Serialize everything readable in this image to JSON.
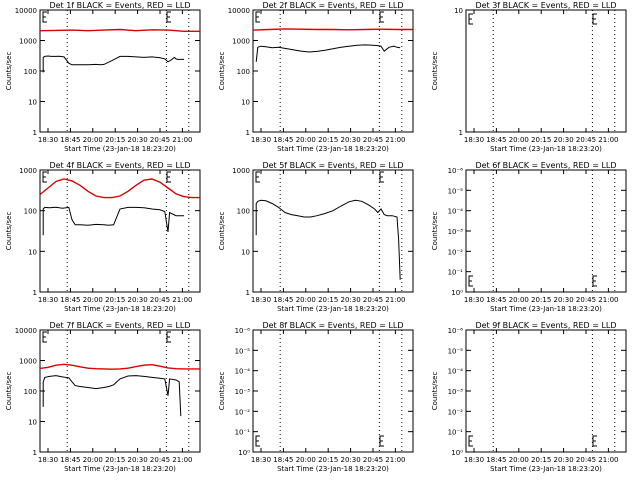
{
  "figure": {
    "xlabel": "Start Time (23-Jan-18 18:23:20)",
    "ylabel": "Counts/sec",
    "xticks": [
      "18:30",
      "18:45",
      "20:00",
      "20:15",
      "20:30",
      "20:45",
      "21:00"
    ]
  },
  "chart_data": [
    {
      "type": "line",
      "title": "Det 1f BLACK = Events, RED = LLD",
      "ylog": true,
      "ylim": [
        1,
        10000
      ],
      "yticks": [
        "1",
        "10",
        "100",
        "1000",
        "10000"
      ],
      "series": [
        {
          "color": "#000000",
          "x": [
            0.02,
            0.02,
            0.03,
            0.05,
            0.07,
            0.1,
            0.12,
            0.15,
            0.18,
            0.2,
            0.25,
            0.3,
            0.35,
            0.38,
            0.4,
            0.45,
            0.5,
            0.55,
            0.6,
            0.65,
            0.7,
            0.75,
            0.78,
            0.8,
            0.82,
            0.84,
            0.85,
            0.86,
            0.9
          ],
          "y": [
            90,
            280,
            300,
            310,
            300,
            300,
            305,
            290,
            180,
            160,
            160,
            160,
            165,
            160,
            165,
            220,
            300,
            300,
            290,
            280,
            290,
            270,
            250,
            200,
            230,
            280,
            250,
            240,
            240
          ]
        },
        {
          "color": "#dd0000",
          "x": [
            0,
            0.1,
            0.2,
            0.3,
            0.4,
            0.5,
            0.6,
            0.7,
            0.8,
            0.9,
            1.0
          ],
          "y": [
            2100,
            2150,
            2200,
            2100,
            2200,
            2300,
            2100,
            2250,
            2200,
            2000,
            2000
          ]
        }
      ]
    },
    {
      "type": "line",
      "title": "Det 2f BLACK = Events, RED = LLD",
      "ylog": true,
      "ylim": [
        1,
        10000
      ],
      "yticks": [
        "1",
        "10",
        "100",
        "1000",
        "10000"
      ],
      "series": [
        {
          "color": "#000000",
          "x": [
            0.02,
            0.03,
            0.05,
            0.08,
            0.12,
            0.16,
            0.2,
            0.25,
            0.3,
            0.35,
            0.4,
            0.45,
            0.5,
            0.55,
            0.6,
            0.65,
            0.7,
            0.75,
            0.78,
            0.8,
            0.82,
            0.85,
            0.88,
            0.9,
            0.92
          ],
          "y": [
            200,
            600,
            650,
            620,
            580,
            600,
            550,
            500,
            450,
            420,
            440,
            480,
            540,
            600,
            650,
            700,
            720,
            700,
            680,
            650,
            450,
            600,
            650,
            600,
            580
          ]
        },
        {
          "color": "#dd0000",
          "x": [
            0,
            0.1,
            0.2,
            0.3,
            0.4,
            0.5,
            0.6,
            0.7,
            0.8,
            0.9,
            1.0
          ],
          "y": [
            2200,
            2300,
            2400,
            2350,
            2300,
            2300,
            2250,
            2300,
            2350,
            2300,
            2300
          ]
        }
      ]
    },
    {
      "type": "line",
      "title": "Det 3f BLACK = Events, RED = LLD",
      "ylog": true,
      "ylim": [
        1,
        10
      ],
      "yticks": [
        "1",
        "10"
      ],
      "series": []
    },
    {
      "type": "line",
      "title": "Det 4f BLACK = Events, RED = LLD",
      "ylog": true,
      "ylim": [
        1,
        1000
      ],
      "yticks": [
        "1",
        "10",
        "100",
        "1000"
      ],
      "series": [
        {
          "color": "#000000",
          "x": [
            0.02,
            0.02,
            0.03,
            0.06,
            0.1,
            0.14,
            0.18,
            0.2,
            0.22,
            0.25,
            0.3,
            0.35,
            0.4,
            0.43,
            0.46,
            0.5,
            0.55,
            0.6,
            0.65,
            0.7,
            0.75,
            0.78,
            0.8,
            0.81,
            0.85,
            0.9
          ],
          "y": [
            25,
            110,
            120,
            118,
            122,
            115,
            120,
            60,
            45,
            45,
            44,
            46,
            45,
            44,
            45,
            110,
            120,
            120,
            118,
            110,
            105,
            95,
            30,
            90,
            75,
            75
          ]
        },
        {
          "color": "#dd0000",
          "x": [
            0,
            0.05,
            0.1,
            0.15,
            0.2,
            0.25,
            0.3,
            0.35,
            0.4,
            0.45,
            0.5,
            0.55,
            0.6,
            0.65,
            0.7,
            0.75,
            0.8,
            0.85,
            0.9,
            0.95,
            1.0
          ],
          "y": [
            250,
            360,
            520,
            600,
            540,
            420,
            300,
            230,
            210,
            210,
            230,
            300,
            420,
            560,
            600,
            500,
            360,
            260,
            220,
            210,
            210
          ]
        }
      ]
    },
    {
      "type": "line",
      "title": "Det 5f BLACK = Events, RED = LLD",
      "ylog": true,
      "ylim": [
        1,
        1000
      ],
      "yticks": [
        "1",
        "10",
        "100",
        "1000"
      ],
      "series": [
        {
          "color": "#000000",
          "x": [
            0.02,
            0.02,
            0.03,
            0.05,
            0.08,
            0.12,
            0.16,
            0.2,
            0.24,
            0.28,
            0.32,
            0.36,
            0.4,
            0.45,
            0.5,
            0.55,
            0.6,
            0.64,
            0.68,
            0.72,
            0.76,
            0.78,
            0.8,
            0.82,
            0.84,
            0.87,
            0.9,
            0.91,
            0.92
          ],
          "y": [
            25,
            150,
            170,
            180,
            175,
            150,
            120,
            90,
            80,
            75,
            70,
            70,
            75,
            85,
            100,
            130,
            165,
            180,
            170,
            140,
            110,
            90,
            110,
            80,
            75,
            75,
            70,
            20,
            2
          ]
        }
      ]
    },
    {
      "type": "line",
      "title": "Det 6f BLACK = Events, RED = LLD",
      "ylog": true,
      "ylim": [
        1e-06,
        1
      ],
      "yticks": [
        "10⁰",
        "10⁻¹",
        "10⁻²",
        "10⁻³",
        "10⁻⁴",
        "10⁻⁵",
        "10⁻⁶"
      ],
      "series": []
    },
    {
      "type": "line",
      "title": "Det 7f BLACK = Events, RED = LLD",
      "ylog": true,
      "ylim": [
        1,
        10000
      ],
      "yticks": [
        "1",
        "10",
        "100",
        "1000",
        "10000"
      ],
      "series": [
        {
          "color": "#000000",
          "x": [
            0.02,
            0.02,
            0.03,
            0.06,
            0.1,
            0.14,
            0.18,
            0.2,
            0.22,
            0.25,
            0.3,
            0.35,
            0.4,
            0.43,
            0.46,
            0.5,
            0.55,
            0.6,
            0.65,
            0.7,
            0.75,
            0.78,
            0.8,
            0.81,
            0.85,
            0.87,
            0.88
          ],
          "y": [
            30,
            200,
            280,
            300,
            320,
            290,
            270,
            200,
            150,
            140,
            130,
            120,
            130,
            140,
            160,
            250,
            310,
            320,
            300,
            280,
            260,
            250,
            70,
            250,
            230,
            200,
            15
          ]
        },
        {
          "color": "#dd0000",
          "x": [
            0,
            0.05,
            0.1,
            0.15,
            0.2,
            0.25,
            0.3,
            0.35,
            0.4,
            0.45,
            0.5,
            0.55,
            0.6,
            0.65,
            0.7,
            0.75,
            0.8,
            0.85,
            0.9,
            0.95,
            1.0
          ],
          "y": [
            550,
            600,
            700,
            750,
            700,
            620,
            560,
            540,
            530,
            520,
            530,
            560,
            630,
            700,
            730,
            650,
            570,
            540,
            530,
            530,
            530
          ]
        }
      ]
    },
    {
      "type": "line",
      "title": "Det 8f BLACK = Events, RED = LLD",
      "ylog": true,
      "ylim": [
        1e-06,
        1
      ],
      "yticks": [
        "10⁰",
        "10⁻¹",
        "10⁻²",
        "10⁻³",
        "10⁻⁴",
        "10⁻⁵",
        "10⁻⁶"
      ],
      "series": []
    },
    {
      "type": "line",
      "title": "Det 9f BLACK = Events, RED = LLD",
      "ylog": true,
      "ylim": [
        1e-06,
        1
      ],
      "yticks": [
        "10⁰",
        "10⁻¹",
        "10⁻²",
        "10⁻³",
        "10⁻⁴",
        "10⁻⁵",
        "10⁻⁶"
      ],
      "series": []
    }
  ]
}
